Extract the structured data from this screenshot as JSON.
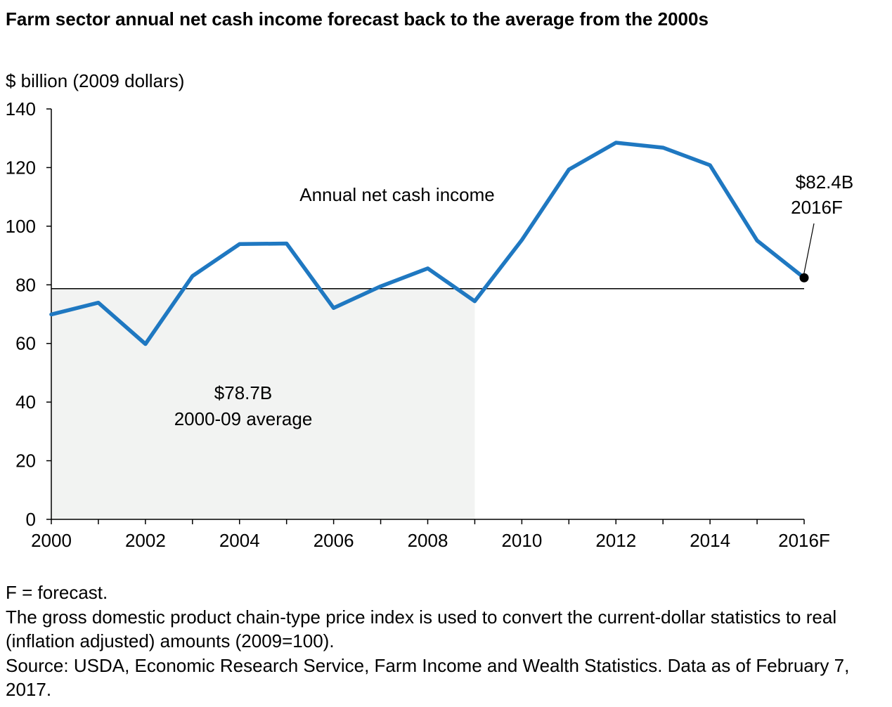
{
  "chart_data": {
    "type": "line",
    "title": "Farm sector annual net cash income forecast back to the average from the 2000s",
    "ylabel": "$ billion (2009 dollars)",
    "xlabel": "",
    "ylim": [
      0,
      140
    ],
    "yticks": [
      0,
      20,
      40,
      60,
      80,
      100,
      120,
      140
    ],
    "x": [
      "2000",
      "2001",
      "2002",
      "2003",
      "2004",
      "2005",
      "2006",
      "2007",
      "2008",
      "2009",
      "2010",
      "2011",
      "2012",
      "2013",
      "2014",
      "2015",
      "2016F"
    ],
    "xtick_labels": [
      "2000",
      "",
      "2002",
      "",
      "2004",
      "",
      "2006",
      "",
      "2008",
      "",
      "2010",
      "",
      "2012",
      "",
      "2014",
      "",
      "2016F"
    ],
    "series": [
      {
        "name": "Annual net cash income",
        "color": "#1f78c1",
        "values": [
          69.9,
          73.9,
          59.8,
          83.0,
          93.9,
          94.1,
          72.1,
          79.5,
          85.6,
          74.4,
          95.3,
          119.3,
          128.5,
          126.8,
          120.8,
          95.1,
          82.4
        ]
      }
    ],
    "reference_line": {
      "value": 78.7,
      "label_value": "$78.7B",
      "label_text": "2000-09 average",
      "shaded_range": [
        "2000",
        "2009"
      ],
      "shade_color": "#f2f3f2"
    },
    "annotations": {
      "series_label": "Annual net cash income",
      "endpoint_value": "$82.4B",
      "endpoint_year": "2016F"
    },
    "grid": false,
    "legend": "none"
  },
  "footnotes": [
    "F = forecast.",
    "The gross domestic product chain-type price index is used to convert the current-dollar statistics to real (inflation adjusted) amounts (2009=100).",
    "Source: USDA, Economic Research Service, Farm Income and Wealth Statistics. Data as of February 7, 2017."
  ]
}
